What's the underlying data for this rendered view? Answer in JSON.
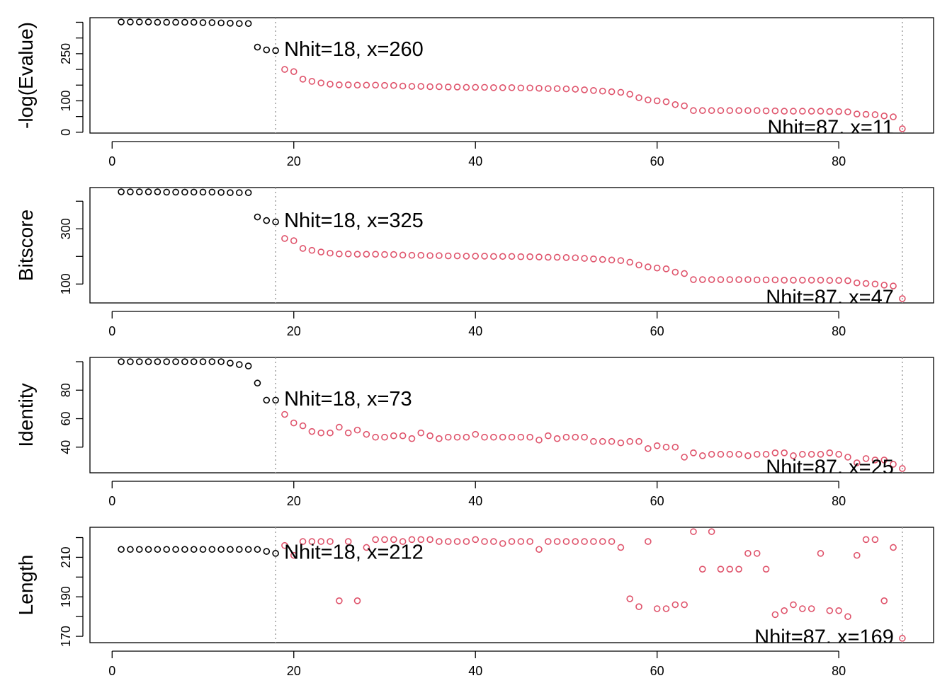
{
  "chart_data": [
    {
      "type": "scatter",
      "ylabel": "-log(Evalue)",
      "x": [
        1,
        2,
        3,
        4,
        5,
        6,
        7,
        8,
        9,
        10,
        11,
        12,
        13,
        14,
        15,
        16,
        17,
        18,
        19,
        20,
        21,
        22,
        23,
        24,
        25,
        26,
        27,
        28,
        29,
        30,
        31,
        32,
        33,
        34,
        35,
        36,
        37,
        38,
        39,
        40,
        41,
        42,
        43,
        44,
        45,
        46,
        47,
        48,
        49,
        50,
        51,
        52,
        53,
        54,
        55,
        56,
        57,
        58,
        59,
        60,
        61,
        62,
        63,
        64,
        65,
        66,
        67,
        68,
        69,
        70,
        71,
        72,
        73,
        74,
        75,
        76,
        77,
        78,
        79,
        80,
        81,
        82,
        83,
        84,
        85,
        86,
        87
      ],
      "values": [
        351,
        351,
        351,
        351,
        350,
        350,
        350,
        350,
        350,
        349,
        349,
        348,
        347,
        346,
        346,
        271,
        262,
        260,
        200,
        193,
        169,
        162,
        157,
        153,
        151,
        151,
        150,
        150,
        150,
        149,
        149,
        147,
        146,
        146,
        145,
        145,
        144,
        144,
        143,
        143,
        143,
        142,
        142,
        142,
        141,
        141,
        140,
        139,
        139,
        138,
        137,
        135,
        133,
        131,
        129,
        127,
        121,
        110,
        103,
        100,
        97,
        88,
        84,
        69,
        69,
        69,
        69,
        69,
        69,
        69,
        69,
        68,
        68,
        67,
        67,
        67,
        67,
        67,
        66,
        66,
        65,
        58,
        57,
        56,
        52,
        49,
        11
      ],
      "color": "#000000",
      "highlight_color": "#DF536B",
      "vlines": [
        18,
        87
      ],
      "vline_color": "#9E9E9E",
      "annotations": [
        "Nhit=18, x=260",
        "Nhit=87, x=11"
      ],
      "xlim": [
        -2.44,
        90.44
      ],
      "xticks": [
        0,
        20,
        40,
        60,
        80
      ],
      "ylim": [
        -2.6,
        364.6
      ],
      "yticks": [
        0,
        100,
        250
      ],
      "yticks_unlabeled": [
        50,
        150,
        200,
        300,
        350
      ]
    },
    {
      "type": "scatter",
      "ylabel": "Bitscore",
      "x": [
        1,
        2,
        3,
        4,
        5,
        6,
        7,
        8,
        9,
        10,
        11,
        12,
        13,
        14,
        15,
        16,
        17,
        18,
        19,
        20,
        21,
        22,
        23,
        24,
        25,
        26,
        27,
        28,
        29,
        30,
        31,
        32,
        33,
        34,
        35,
        36,
        37,
        38,
        39,
        40,
        41,
        42,
        43,
        44,
        45,
        46,
        47,
        48,
        49,
        50,
        51,
        52,
        53,
        54,
        55,
        56,
        57,
        58,
        59,
        60,
        61,
        62,
        63,
        64,
        65,
        66,
        67,
        68,
        69,
        70,
        71,
        72,
        73,
        74,
        75,
        76,
        77,
        78,
        79,
        80,
        81,
        82,
        83,
        84,
        85,
        86,
        87
      ],
      "values": [
        434,
        434,
        434,
        434,
        434,
        433,
        433,
        433,
        433,
        433,
        433,
        432,
        431,
        431,
        431,
        343,
        330,
        325,
        265,
        257,
        229,
        222,
        216,
        212,
        209,
        209,
        208,
        208,
        208,
        207,
        207,
        205,
        204,
        204,
        203,
        203,
        202,
        202,
        201,
        201,
        201,
        200,
        200,
        200,
        199,
        199,
        198,
        197,
        197,
        196,
        195,
        193,
        191,
        189,
        187,
        185,
        179,
        169,
        162,
        158,
        155,
        143,
        138,
        116,
        116,
        116,
        116,
        116,
        116,
        116,
        115,
        115,
        115,
        114,
        114,
        114,
        114,
        114,
        113,
        113,
        112,
        104,
        102,
        100,
        96,
        93,
        47
      ],
      "color": "#000000",
      "highlight_color": "#DF536B",
      "vlines": [
        18,
        87
      ],
      "vline_color": "#9E9E9E",
      "annotations": [
        "Nhit=18, x=325",
        "Nhit=87, x=47"
      ],
      "xlim": [
        -2.44,
        90.44
      ],
      "xticks": [
        0,
        20,
        40,
        60,
        80
      ],
      "ylim": [
        31.5,
        449.5
      ],
      "yticks": [
        100,
        300
      ],
      "yticks_unlabeled": [
        200,
        400
      ]
    },
    {
      "type": "scatter",
      "ylabel": "Identity",
      "x": [
        1,
        2,
        3,
        4,
        5,
        6,
        7,
        8,
        9,
        10,
        11,
        12,
        13,
        14,
        15,
        16,
        17,
        18,
        19,
        20,
        21,
        22,
        23,
        24,
        25,
        26,
        27,
        28,
        29,
        30,
        31,
        32,
        33,
        34,
        35,
        36,
        37,
        38,
        39,
        40,
        41,
        42,
        43,
        44,
        45,
        46,
        47,
        48,
        49,
        50,
        51,
        52,
        53,
        54,
        55,
        56,
        57,
        58,
        59,
        60,
        61,
        62,
        63,
        64,
        65,
        66,
        67,
        68,
        69,
        70,
        71,
        72,
        73,
        74,
        75,
        76,
        77,
        78,
        79,
        80,
        81,
        82,
        83,
        84,
        85,
        86,
        87
      ],
      "values": [
        100,
        100,
        100,
        100,
        100,
        100,
        100,
        100,
        100,
        100,
        100,
        100,
        99,
        98,
        97,
        85,
        73,
        73,
        63,
        57,
        55,
        51,
        50,
        50,
        54,
        50,
        52,
        49,
        47,
        47,
        48,
        48,
        46,
        50,
        48,
        46,
        47,
        47,
        47,
        49,
        47,
        47,
        47,
        47,
        47,
        47,
        45,
        48,
        46,
        47,
        47,
        47,
        44,
        44,
        44,
        43,
        44,
        44,
        39,
        41,
        40,
        40,
        33,
        36,
        34,
        35,
        35,
        35,
        35,
        34,
        35,
        35,
        36,
        36,
        34,
        35,
        35,
        35,
        36,
        35,
        33,
        29,
        32,
        31,
        31,
        28,
        25
      ],
      "color": "#000000",
      "highlight_color": "#DF536B",
      "vlines": [
        18,
        87
      ],
      "vline_color": "#9E9E9E",
      "annotations": [
        "Nhit=18, x=73",
        "Nhit=87, x=25"
      ],
      "xlim": [
        -2.44,
        90.44
      ],
      "xticks": [
        0,
        20,
        40,
        60,
        80
      ],
      "ylim": [
        22,
        103
      ],
      "yticks": [
        40,
        60,
        80
      ],
      "yticks_unlabeled": [
        100
      ]
    },
    {
      "type": "scatter",
      "ylabel": "Length",
      "x": [
        1,
        2,
        3,
        4,
        5,
        6,
        7,
        8,
        9,
        10,
        11,
        12,
        13,
        14,
        15,
        16,
        17,
        18,
        19,
        20,
        21,
        22,
        23,
        24,
        25,
        26,
        27,
        28,
        29,
        30,
        31,
        32,
        33,
        34,
        35,
        36,
        37,
        38,
        39,
        40,
        41,
        42,
        43,
        44,
        45,
        46,
        47,
        48,
        49,
        50,
        51,
        52,
        53,
        54,
        55,
        56,
        57,
        58,
        59,
        60,
        61,
        62,
        63,
        64,
        65,
        66,
        67,
        68,
        69,
        70,
        71,
        72,
        73,
        74,
        75,
        76,
        77,
        78,
        79,
        80,
        81,
        82,
        83,
        84,
        85,
        86,
        87
      ],
      "values": [
        214,
        214,
        214,
        214,
        214,
        214,
        214,
        214,
        214,
        214,
        214,
        214,
        214,
        214,
        214,
        214,
        213,
        212,
        216,
        211,
        218,
        218,
        218,
        218,
        188,
        218,
        188,
        215,
        219,
        219,
        219,
        218,
        219,
        219,
        219,
        218,
        218,
        218,
        218,
        219,
        218,
        218,
        217,
        218,
        218,
        218,
        214,
        218,
        218,
        218,
        218,
        218,
        218,
        218,
        218,
        215,
        189,
        185,
        218,
        184,
        184,
        186,
        186,
        223,
        204,
        223,
        204,
        204,
        204,
        212,
        212,
        204,
        181,
        183,
        186,
        184,
        184,
        212,
        183,
        183,
        180,
        211,
        219,
        219,
        188,
        215,
        169
      ],
      "color": "#000000",
      "highlight_color": "#DF536B",
      "vlines": [
        18,
        87
      ],
      "vline_color": "#9E9E9E",
      "annotations": [
        "Nhit=18, x=212",
        "Nhit=87, x=169"
      ],
      "xlim": [
        -2.44,
        90.44
      ],
      "xticks": [
        0,
        20,
        40,
        60,
        80
      ],
      "ylim": [
        166.8,
        225.2
      ],
      "yticks": [
        170,
        190,
        210
      ],
      "yticks_unlabeled": [
        180,
        200,
        220
      ]
    }
  ]
}
